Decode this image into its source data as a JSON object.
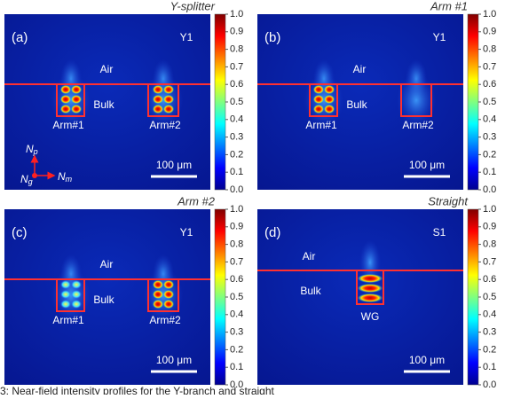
{
  "panels": [
    {
      "title": "Y-splitter",
      "letter": "(a)",
      "tag": "Y1",
      "air": "Air",
      "bulk": "Bulk",
      "arms": [
        "Arm#1",
        "Arm#2"
      ],
      "scalebar": "100 μm",
      "axes": [
        {
          "base": "N",
          "sub": "p"
        },
        {
          "base": "N",
          "sub": "m"
        },
        {
          "base": "N",
          "sub": "g"
        }
      ]
    },
    {
      "title": "Arm #1",
      "letter": "(b)",
      "tag": "Y1",
      "air": "Air",
      "bulk": "Bulk",
      "arms": [
        "Arm#1",
        "Arm#2"
      ],
      "scalebar": "100 μm"
    },
    {
      "title": "Arm #2",
      "letter": "(c)",
      "tag": "Y1",
      "air": "Air",
      "bulk": "Bulk",
      "arms": [
        "Arm#1",
        "Arm#2"
      ],
      "scalebar": "100 μm"
    },
    {
      "title": "Straight",
      "letter": "(d)",
      "tag": "S1",
      "air": "Air",
      "bulk": "Bulk",
      "arms": [
        "WG"
      ],
      "scalebar": "100 μm"
    }
  ],
  "colorbar_ticks": [
    "0.0",
    "0.1",
    "0.2",
    "0.3",
    "0.4",
    "0.5",
    "0.6",
    "0.7",
    "0.8",
    "0.9",
    "1.0"
  ],
  "caption": "3: Near-field intensity profiles for the Y-branch and straight"
}
